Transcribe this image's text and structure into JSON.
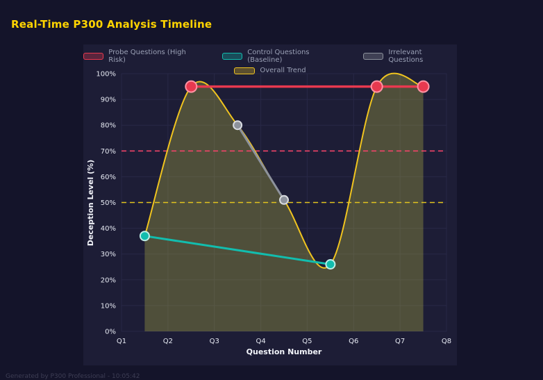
{
  "header": {
    "title": "Real-Time P300 Analysis Timeline",
    "title_color": "#ffd400"
  },
  "footer": {
    "text": "Generated by P300 Professional - 10:05:42"
  },
  "colors": {
    "page_bg": "#14142a",
    "panel_bg": "#1d1d36",
    "gridline": "#282847",
    "tick_label": "#e6e9f2",
    "axis_title": "#f2f4fa",
    "legend_label": "#9aa0b5"
  },
  "chart_data": {
    "type": "line",
    "title": "Real-Time P300 Analysis Timeline",
    "xlabel": "Question Number",
    "ylabel": "Deception Level (%)",
    "xlim": [
      1,
      8
    ],
    "ylim": [
      0,
      100
    ],
    "grid": true,
    "legend_position": "top",
    "x_ticks": [
      "Q1",
      "Q2",
      "Q3",
      "Q4",
      "Q5",
      "Q6",
      "Q7",
      "Q8"
    ],
    "x_tick_values": [
      1,
      2,
      3,
      4,
      5,
      6,
      7,
      8
    ],
    "y_ticks": [
      "0%",
      "10%",
      "20%",
      "30%",
      "40%",
      "50%",
      "60%",
      "70%",
      "80%",
      "90%",
      "100%"
    ],
    "y_tick_values": [
      0,
      10,
      20,
      30,
      40,
      50,
      60,
      70,
      80,
      90,
      100
    ],
    "series": [
      {
        "name": "Probe Questions (High Risk)",
        "color": "#e8394f",
        "marker_border": "#ff93a4",
        "marker_radius": 8,
        "line_width": 3.5,
        "points": [
          {
            "x": 2.5,
            "y": 95
          },
          {
            "x": 6.5,
            "y": 95
          },
          {
            "x": 7.5,
            "y": 95
          }
        ]
      },
      {
        "name": "Control Questions (Baseline)",
        "color": "#12bdae",
        "marker_border": "#bfefe8",
        "marker_radius": 6.5,
        "line_width": 3,
        "points": [
          {
            "x": 1.5,
            "y": 37
          },
          {
            "x": 5.5,
            "y": 26
          }
        ]
      },
      {
        "name": "Irrelevant Questions",
        "color": "#8d929c",
        "marker_border": "#d9dce1",
        "marker_radius": 6,
        "line_width": 3,
        "points": [
          {
            "x": 3.5,
            "y": 80
          },
          {
            "x": 4.5,
            "y": 51
          }
        ]
      }
    ],
    "trend": {
      "name": "Overall Trend",
      "color": "#f0c41f",
      "line_width": 2,
      "area_fill": "rgba(212,212,70,0.28)",
      "points": [
        {
          "x": 1.5,
          "y": 37
        },
        {
          "x": 2.5,
          "y": 95
        },
        {
          "x": 3.5,
          "y": 80
        },
        {
          "x": 4.5,
          "y": 51
        },
        {
          "x": 5.5,
          "y": 26
        },
        {
          "x": 6.5,
          "y": 95
        },
        {
          "x": 7.5,
          "y": 95
        }
      ]
    },
    "thresholds": [
      {
        "value": 70,
        "color": "#f04468",
        "style": "dashed"
      },
      {
        "value": 50,
        "color": "#e3c51e",
        "style": "dashed"
      }
    ]
  }
}
